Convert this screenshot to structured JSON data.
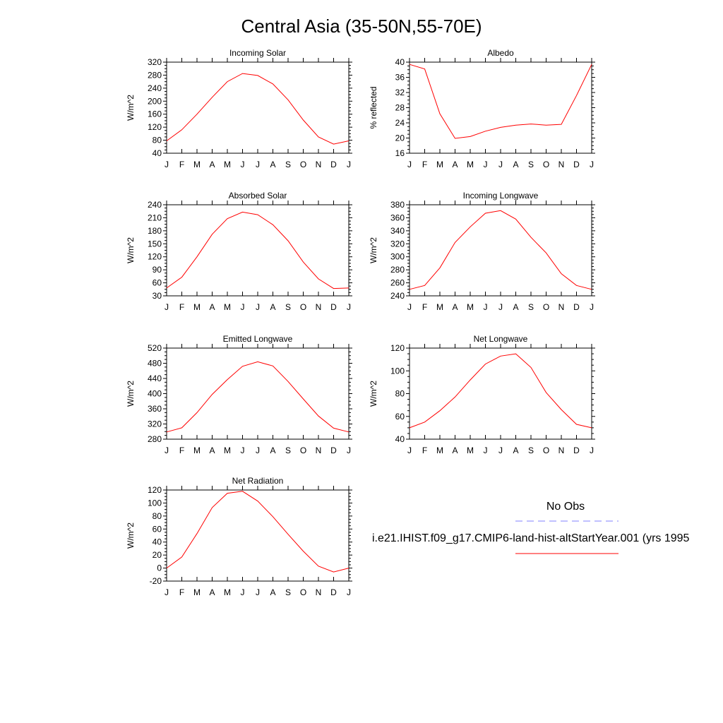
{
  "page": {
    "title": "Central Asia (35-50N,55-70E)"
  },
  "legend": {
    "obs_label": "No Obs",
    "obs_color": "#8080ff",
    "model_label": "i.e21.IHIST.f09_g17.CMIP6-land-hist-altStartYear.001 (yrs 1995",
    "model_color": "#ff0000"
  },
  "chart_data": [
    {
      "type": "line",
      "title": "Incoming Solar",
      "ylabel": "W/m^2",
      "x": [
        "J",
        "F",
        "M",
        "A",
        "M",
        "J",
        "J",
        "A",
        "S",
        "O",
        "N",
        "D",
        "J"
      ],
      "yticks": [
        40,
        80,
        120,
        160,
        200,
        240,
        280,
        320
      ],
      "ylim": [
        40,
        320
      ],
      "series": [
        {
          "color": "#ff0000",
          "values": [
            78,
            112,
            160,
            212,
            260,
            285,
            279,
            253,
            204,
            142,
            90,
            68,
            78
          ]
        }
      ]
    },
    {
      "type": "line",
      "title": "Albedo",
      "ylabel": "% reflected",
      "x": [
        "J",
        "F",
        "M",
        "A",
        "M",
        "J",
        "J",
        "A",
        "S",
        "O",
        "N",
        "D",
        "J"
      ],
      "yticks": [
        16,
        20,
        24,
        28,
        32,
        36,
        40
      ],
      "ylim": [
        16,
        40
      ],
      "series": [
        {
          "color": "#ff0000",
          "values": [
            39.4,
            38.2,
            26.4,
            19.9,
            20.4,
            21.8,
            22.8,
            23.4,
            23.7,
            23.4,
            23.6,
            31.2,
            39.4
          ]
        }
      ]
    },
    {
      "type": "line",
      "title": "Absorbed Solar",
      "ylabel": "W/m^2",
      "x": [
        "J",
        "F",
        "M",
        "A",
        "M",
        "J",
        "J",
        "A",
        "S",
        "O",
        "N",
        "D",
        "J"
      ],
      "yticks": [
        30,
        60,
        90,
        120,
        150,
        180,
        210,
        240
      ],
      "ylim": [
        30,
        240
      ],
      "series": [
        {
          "color": "#ff0000",
          "values": [
            48,
            73,
            120,
            172,
            208,
            223,
            217,
            194,
            157,
            108,
            69,
            47,
            48
          ]
        }
      ]
    },
    {
      "type": "line",
      "title": "Incoming Longwave",
      "ylabel": "W/m^2",
      "x": [
        "J",
        "F",
        "M",
        "A",
        "M",
        "J",
        "J",
        "A",
        "S",
        "O",
        "N",
        "D",
        "J"
      ],
      "yticks": [
        240,
        260,
        280,
        300,
        320,
        340,
        360,
        380
      ],
      "ylim": [
        240,
        380
      ],
      "series": [
        {
          "color": "#ff0000",
          "values": [
            250,
            256,
            283,
            322,
            346,
            367,
            371,
            358,
            330,
            306,
            274,
            256,
            250
          ]
        }
      ]
    },
    {
      "type": "line",
      "title": "Emitted Longwave",
      "ylabel": "W/m^2",
      "x": [
        "J",
        "F",
        "M",
        "A",
        "M",
        "J",
        "J",
        "A",
        "S",
        "O",
        "N",
        "D",
        "J"
      ],
      "yticks": [
        280,
        320,
        360,
        400,
        440,
        480,
        520
      ],
      "ylim": [
        280,
        520
      ],
      "series": [
        {
          "color": "#ff0000",
          "values": [
            299,
            310,
            350,
            398,
            437,
            472,
            484,
            473,
            432,
            386,
            341,
            309,
            299
          ]
        }
      ]
    },
    {
      "type": "line",
      "title": "Net Longwave",
      "ylabel": "W/m^2",
      "x": [
        "J",
        "F",
        "M",
        "A",
        "M",
        "J",
        "J",
        "A",
        "S",
        "O",
        "N",
        "D",
        "J"
      ],
      "yticks": [
        40,
        60,
        80,
        100,
        120
      ],
      "ylim": [
        40,
        120
      ],
      "series": [
        {
          "color": "#ff0000",
          "values": [
            50,
            55,
            65,
            77,
            92,
            106,
            113,
            115,
            103,
            81,
            66,
            53,
            50
          ]
        }
      ]
    },
    {
      "type": "line",
      "title": "Net Radiation",
      "ylabel": "W/m^2",
      "x": [
        "J",
        "F",
        "M",
        "A",
        "M",
        "J",
        "J",
        "A",
        "S",
        "O",
        "N",
        "D",
        "J"
      ],
      "yticks": [
        -20,
        0,
        20,
        40,
        60,
        80,
        100,
        120
      ],
      "ylim": [
        -20,
        120
      ],
      "series": [
        {
          "color": "#ff0000",
          "values": [
            0,
            17,
            53,
            93,
            115,
            118,
            103,
            79,
            52,
            26,
            3,
            -6,
            0
          ]
        }
      ]
    }
  ]
}
